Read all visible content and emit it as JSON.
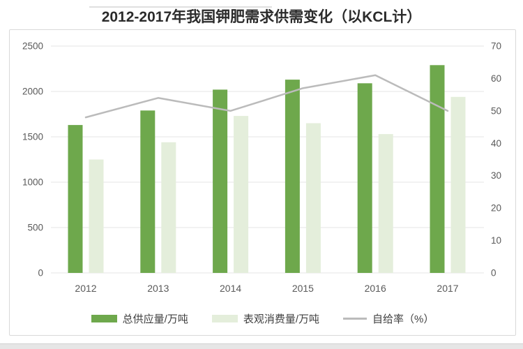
{
  "title": "2012-2017年我国钾肥需求供需变化（以KCL计）",
  "chart_data": {
    "type": "bar+line",
    "title": "2012-2017年我国钾肥需求供需变化（以KCL计）",
    "categories": [
      "2012",
      "2013",
      "2014",
      "2015",
      "2016",
      "2017"
    ],
    "series": [
      {
        "id": "total-supply",
        "name": "总供应量/万吨",
        "kind": "bar",
        "axis": "left",
        "color": "#6EA84C",
        "values": [
          1630,
          1790,
          2020,
          2130,
          2090,
          2290
        ]
      },
      {
        "id": "apparent-consumption",
        "name": "表观消费量/万吨",
        "kind": "bar",
        "axis": "left",
        "color": "#E4EEDB",
        "values": [
          1250,
          1440,
          1730,
          1650,
          1530,
          1940
        ]
      },
      {
        "id": "self-sufficiency-rate",
        "name": "自给率（%）",
        "kind": "line",
        "axis": "right",
        "color": "#BBBBBB",
        "values": [
          48,
          54,
          50,
          57,
          61,
          50
        ]
      }
    ],
    "left_axis": {
      "min": 0,
      "max": 2500,
      "tick_labels": [
        "0",
        "500",
        "1000",
        "1500",
        "2000",
        "2500"
      ]
    },
    "right_axis": {
      "min": 0,
      "max": 70,
      "tick_labels": [
        "0",
        "10",
        "20",
        "30",
        "40",
        "50",
        "60",
        "70"
      ]
    },
    "grid": true,
    "legend_position": "bottom",
    "colors": {
      "gridline": "#e4e4e4",
      "axis_text": "#595959",
      "title_text": "#2b2b2b",
      "legend_text": "#3f3f3f",
      "card_border": "#d9d9d9"
    }
  }
}
